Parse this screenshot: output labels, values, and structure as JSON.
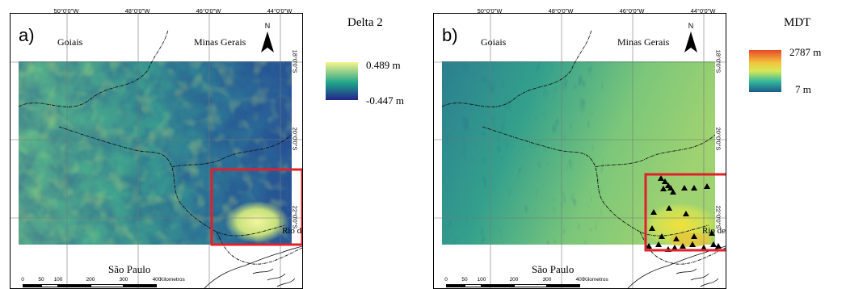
{
  "panel_a": {
    "label": "a)",
    "states": {
      "goias": "Goiais",
      "minas": "Minas Gerais",
      "sao_paulo": "São Paulo",
      "rio": "Rio de"
    },
    "north_label": "N",
    "legend": {
      "title": "Delta 2",
      "max": "0.489 m",
      "min": "-0.447 m",
      "colors": [
        "#f7f58c",
        "#1ea38a",
        "#24238a"
      ]
    }
  },
  "panel_b": {
    "label": "b)",
    "states": {
      "goias": "Goiais",
      "minas": "Minas Gerais",
      "sao_paulo": "São Paulo",
      "rio": "Rio de"
    },
    "north_label": "N",
    "legend": {
      "title": "MDT",
      "max": "2787 m",
      "min": "7 m",
      "colors": [
        "#e8492a",
        "#f2c43a",
        "#d6e85a",
        "#33b89a",
        "#1d5a8a"
      ]
    }
  },
  "graticule": {
    "lon": [
      "50°0'0\"W",
      "48°0'0\"W",
      "46°0'0\"W",
      "44°0'0\"W"
    ],
    "lat": [
      "18°0'0\"S",
      "20°0'0\"S",
      "22°0'0\"S"
    ]
  },
  "scale": {
    "ticks": [
      "0",
      "50",
      "100",
      "200",
      "300",
      "400"
    ],
    "unit": "Kilometros"
  },
  "colors": {
    "highlight_box": "#e0202a",
    "boundary": "#111111",
    "station": "#000000"
  }
}
